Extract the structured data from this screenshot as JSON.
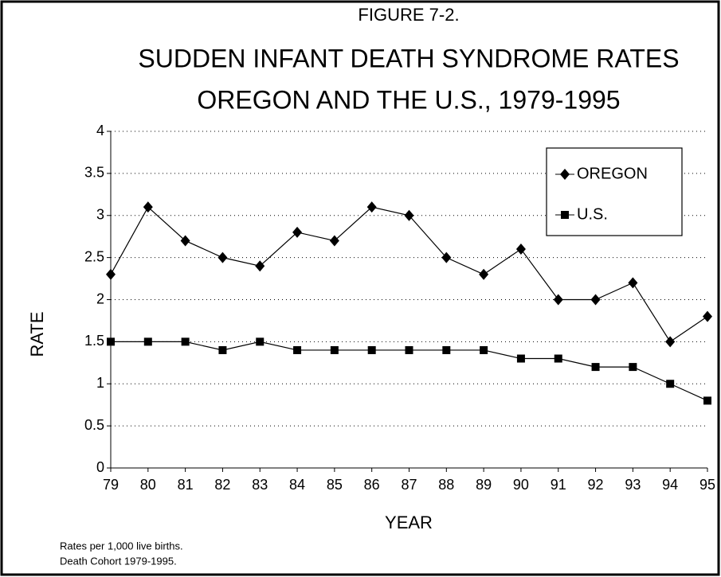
{
  "chart_data": {
    "type": "line",
    "title": "FIGURE 7-2.",
    "subtitle": [
      "SUDDEN INFANT DEATH SYNDROME RATES",
      "OREGON AND THE U.S., 1979-1995"
    ],
    "x_label": "YEAR",
    "y_label": "RATE",
    "categories": [
      "79",
      "80",
      "81",
      "82",
      "83",
      "84",
      "85",
      "86",
      "87",
      "88",
      "89",
      "90",
      "91",
      "92",
      "93",
      "94",
      "95"
    ],
    "series": [
      {
        "name": "OREGON",
        "color": "#000000",
        "marker": "diamond",
        "values": [
          2.3,
          3.1,
          2.7,
          2.5,
          2.4,
          2.8,
          2.7,
          3.1,
          3.0,
          2.5,
          2.3,
          2.6,
          2.0,
          2.0,
          2.2,
          1.5,
          1.8
        ]
      },
      {
        "name": "U.S.",
        "color": "#000000",
        "marker": "square",
        "values": [
          1.5,
          1.5,
          1.5,
          1.4,
          1.5,
          1.4,
          1.4,
          1.4,
          1.4,
          1.4,
          1.4,
          1.3,
          1.3,
          1.2,
          1.2,
          1.0,
          0.8
        ]
      }
    ],
    "ylim": [
      0,
      4
    ],
    "yticks": [
      0,
      0.5,
      1,
      1.5,
      2,
      2.5,
      3,
      3.5,
      4
    ],
    "grid": true,
    "legend": "upper right",
    "notes": [
      "Rates per 1,000 live births.",
      "Death Cohort 1979-1995."
    ]
  }
}
